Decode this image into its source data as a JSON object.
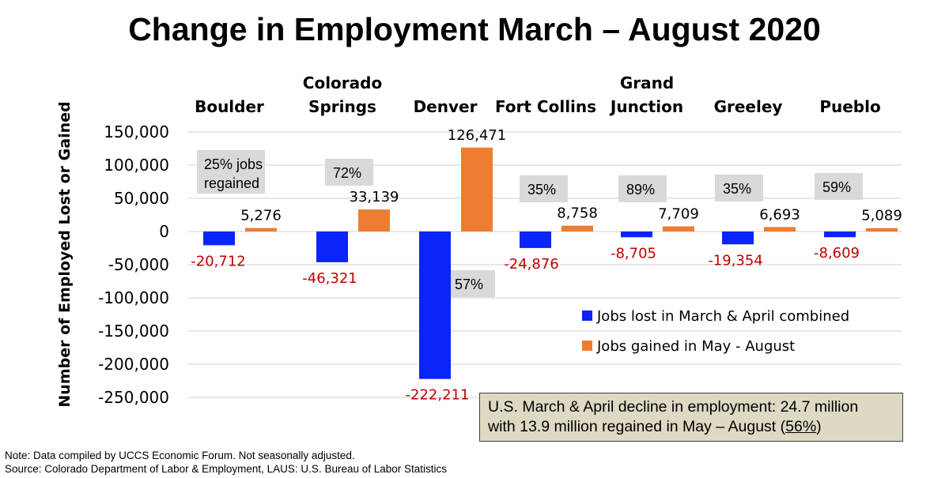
{
  "chart_data": {
    "type": "bar",
    "title": "Change in Employment March – August 2020",
    "ylabel": "Number of Employed Lost or Gained",
    "xlabel": "",
    "ylim": [
      -250000,
      150000
    ],
    "yticks": [
      150000,
      100000,
      50000,
      0,
      -50000,
      -100000,
      -150000,
      -200000,
      -250000
    ],
    "ytick_labels": [
      "150,000",
      "100,000",
      "50,000",
      "0",
      "-50,000",
      "-100,000",
      "-150,000",
      "-200,000",
      "-250,000"
    ],
    "grid": true,
    "categories": [
      "Boulder",
      "Colorado Springs",
      "Denver",
      "Fort Collins",
      "Grand Junction",
      "Greeley",
      "Pueblo"
    ],
    "category_lines": [
      [
        "Boulder"
      ],
      [
        "Colorado",
        "Springs"
      ],
      [
        "Denver"
      ],
      [
        "Fort Collins"
      ],
      [
        "Grand",
        "Junction"
      ],
      [
        "Greeley"
      ],
      [
        "Pueblo"
      ]
    ],
    "series": [
      {
        "name": "Jobs lost in March & April combined",
        "color": "#0b24fb",
        "values": [
          -20712,
          -46321,
          -222211,
          -24876,
          -8705,
          -19354,
          -8609
        ],
        "labels": [
          "-20,712",
          "-46,321",
          "-222,211",
          "-24,876",
          "-8,705",
          "-19,354",
          "-8,609"
        ],
        "label_color": "#c00000"
      },
      {
        "name": "Jobs gained in May - August",
        "color": "#ed7d31",
        "values": [
          5276,
          33139,
          126471,
          8758,
          7709,
          6693,
          5089
        ],
        "labels": [
          "5,276",
          "33,139",
          "126,471",
          "8,758",
          "7,709",
          "6,693",
          "5,089"
        ],
        "label_color": "#000000"
      }
    ],
    "annotations": [
      {
        "category": "Boulder",
        "lines": [
          "25% jobs",
          "regained"
        ]
      },
      {
        "category": "Colorado Springs",
        "lines": [
          "72%"
        ]
      },
      {
        "category": "Denver",
        "lines": [
          "57%"
        ]
      },
      {
        "category": "Fort Collins",
        "lines": [
          "35%"
        ]
      },
      {
        "category": "Grand Junction",
        "lines": [
          "89%"
        ]
      },
      {
        "category": "Greeley",
        "lines": [
          "35%"
        ]
      },
      {
        "category": "Pueblo",
        "lines": [
          "59%"
        ]
      }
    ],
    "legend_position": "bottom-right",
    "callout": {
      "line1": "U.S. March & April decline in employment: 24.7 million",
      "line2_prefix": "with 13.9 million regained in May – August (",
      "line2_pct": "56%",
      "line2_suffix": ")"
    }
  },
  "notes": {
    "note": "Note: Data compiled by UCCS Economic Forum. Not seasonally adjusted.",
    "source": "Source: Colorado Department of Labor & Employment, LAUS: U.S. Bureau of Labor Statistics"
  }
}
